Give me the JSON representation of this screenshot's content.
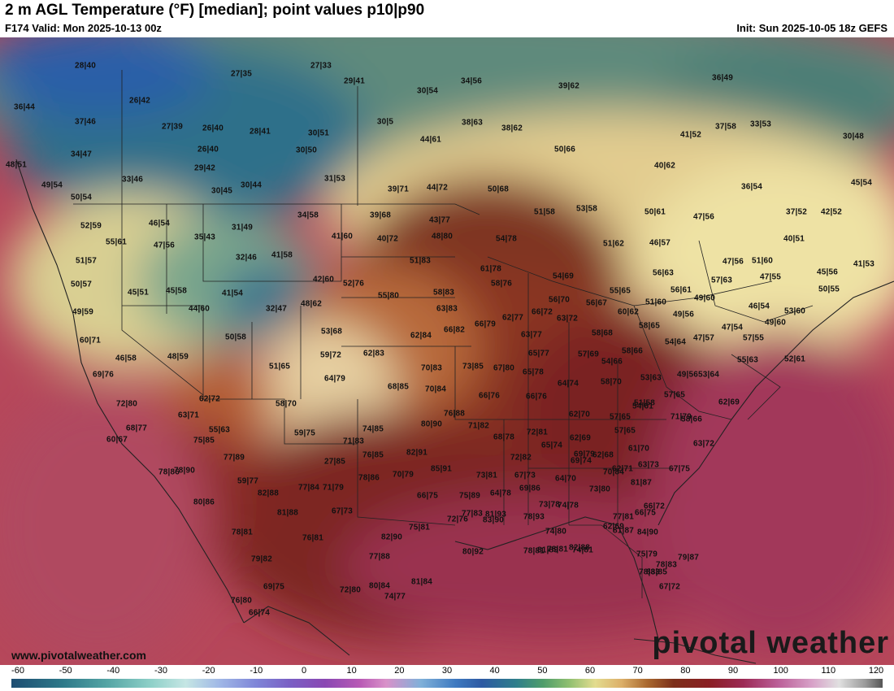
{
  "header": {
    "title": "2 m AGL Temperature (°F) [median]; point values p10|p90",
    "valid": "F174 Valid: Mon 2025-10-13 00z",
    "init": "Init: Sun 2025-10-05 18z GEFS"
  },
  "watermark": {
    "website": "www.pivotalweather.com",
    "brand": "pivotal weather"
  },
  "colorbar": {
    "ticks": [
      "-60",
      "-50",
      "-40",
      "-30",
      "-20",
      "-10",
      "0",
      "10",
      "20",
      "30",
      "40",
      "50",
      "60",
      "70",
      "80",
      "90",
      "100",
      "110",
      "120"
    ]
  },
  "point_values": [
    "28|40",
    "27|35",
    "27|33",
    "29|41",
    "34|56",
    "39|62",
    "36|49",
    "36|44",
    "26|42",
    "30|54",
    "37|46",
    "27|39",
    "26|40",
    "28|41",
    "30|5",
    "38|63",
    "38|62",
    "37|58",
    "33|53",
    "34|47",
    "44|61",
    "30|51",
    "41|52",
    "30|48",
    "26|40",
    "30|50",
    "50|66",
    "48|51",
    "29|42",
    "40|62",
    "33|46",
    "31|53",
    "49|54",
    "30|45",
    "30|44",
    "39|71",
    "44|72",
    "50|68",
    "36|54",
    "45|54",
    "50|54",
    "46|54",
    "34|58",
    "39|68",
    "43|77",
    "51|58",
    "53|58",
    "50|61",
    "47|56",
    "37|52",
    "42|52",
    "52|59",
    "35|43",
    "31|49",
    "41|60",
    "40|72",
    "48|80",
    "54|78",
    "55|61",
    "47|56",
    "51|62",
    "46|57",
    "40|51",
    "32|46",
    "41|58",
    "51|83",
    "61|78",
    "41|53",
    "51|57",
    "47|56",
    "51|60",
    "45|56",
    "42|60",
    "52|76",
    "56|63",
    "50|57",
    "54|69",
    "57|63",
    "47|55",
    "45|51",
    "45|58",
    "41|54",
    "55|80",
    "58|83",
    "58|76",
    "55|65",
    "56|61",
    "50|55",
    "56|70",
    "56|67",
    "49|60",
    "49|59",
    "44|60",
    "32|47",
    "48|62",
    "63|83",
    "62|77",
    "51|60",
    "46|54",
    "66|72",
    "60|62",
    "49|56",
    "53|60",
    "53|68",
    "66|82",
    "66|79",
    "63|72",
    "58|65",
    "49|60",
    "60|71",
    "50|58",
    "62|84",
    "63|77",
    "58|68",
    "54|64",
    "47|57",
    "47|54",
    "57|55",
    "46|58",
    "48|59",
    "59|72",
    "62|83",
    "65|77",
    "57|69",
    "58|66",
    "52|61",
    "55|63",
    "51|65",
    "70|83",
    "73|85",
    "67|80",
    "54|66",
    "69|76",
    "64|79",
    "65|78",
    "64|74",
    "58|70",
    "53|63",
    "49|56",
    "53|64",
    "68|85",
    "70|84",
    "66|76",
    "66|76",
    "51|58",
    "57|65",
    "62|69",
    "62|72",
    "63|71",
    "54|61",
    "72|80",
    "58|70",
    "76|88",
    "62|70",
    "57|65",
    "58|66",
    "71|79",
    "68|77",
    "80|90",
    "71|82",
    "72|81",
    "57|65",
    "63|72",
    "60|67",
    "55|63",
    "59|75",
    "74|85",
    "68|78",
    "62|69",
    "61|70",
    "69|79",
    "75|85",
    "71|83",
    "65|74",
    "62|68",
    "78|86",
    "77|89",
    "82|91",
    "76|85",
    "72|82",
    "69|74",
    "62|71",
    "63|73",
    "67|75",
    "78|90",
    "27|85",
    "78|86",
    "85|91",
    "73|81",
    "67|73",
    "64|70",
    "70|84",
    "81|87",
    "59|77",
    "70|79",
    "69|86",
    "82|88",
    "77|84",
    "71|79",
    "66|75",
    "75|89",
    "64|78",
    "73|78",
    "73|80",
    "66|75",
    "66|72",
    "74|78",
    "74|80",
    "78|93",
    "80|86",
    "81|88",
    "67|73",
    "77|83",
    "83|90",
    "77|81",
    "75|79",
    "81|93",
    "78|81",
    "74|81",
    "78|81",
    "72|76",
    "75|81",
    "84|90",
    "76|81",
    "82|90",
    "81|87",
    "81|89",
    "82|88",
    "78|81",
    "79|82",
    "80|92",
    "62|69",
    "78|83",
    "79|87",
    "77|88",
    "78|83",
    "69|75",
    "72|80",
    "80|84",
    "81|84",
    "83|85",
    "67|72",
    "76|80",
    "74|77",
    "66|74"
  ],
  "colors": {
    "cold": "#1e4e72",
    "cool": "#7fa58a",
    "mild": "#e8d9a0",
    "warm": "#a0552b",
    "hot": "#7a1e22",
    "ocean_warm": "#a33a55"
  }
}
